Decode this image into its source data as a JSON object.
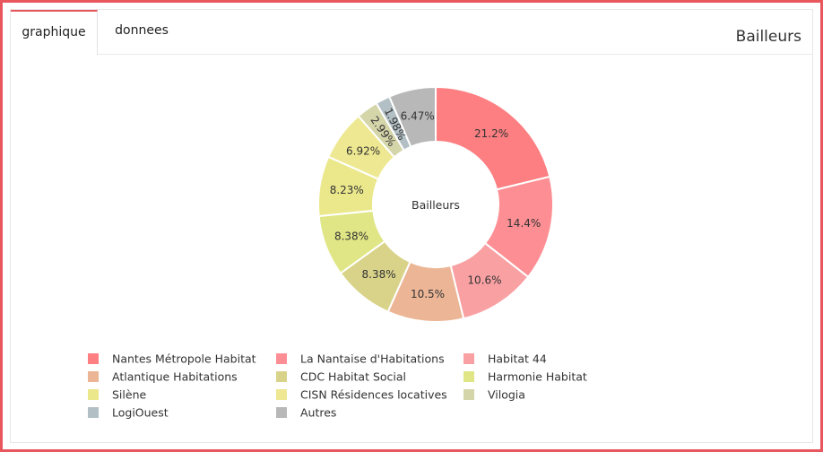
{
  "tabs": [
    {
      "label": "graphique",
      "active": true
    },
    {
      "label": "donnees",
      "active": false
    }
  ],
  "panel_title": "Bailleurs",
  "chart_data": {
    "type": "pie",
    "title": "Bailleurs",
    "hole": true,
    "center_label": "Bailleurs",
    "legend_position": "bottom",
    "slices": [
      {
        "label": "Nantes Métropole Habitat",
        "value": 21.2,
        "text": "21.2%",
        "color": "#fd7f82"
      },
      {
        "label": "La Nantaise d'Habitations",
        "value": 14.4,
        "text": "14.4%",
        "color": "#fd8f94"
      },
      {
        "label": "Habitat 44",
        "value": 10.6,
        "text": "10.6%",
        "color": "#f9a0a3"
      },
      {
        "label": "Atlantique Habitations",
        "value": 10.5,
        "text": "10.5%",
        "color": "#ecb696"
      },
      {
        "label": "CDC Habitat Social",
        "value": 8.38,
        "text": "8.38%",
        "color": "#d9d38a"
      },
      {
        "label": "Harmonie Habitat",
        "value": 8.38,
        "text": "8.38%",
        "color": "#e0e685"
      },
      {
        "label": "Silène",
        "value": 8.23,
        "text": "8.23%",
        "color": "#ebe88c"
      },
      {
        "label": "CISN Résidences locatives",
        "value": 6.92,
        "text": "6.92%",
        "color": "#ede891"
      },
      {
        "label": "Vilogia",
        "value": 2.99,
        "text": "2.99%",
        "color": "#d5d5aa"
      },
      {
        "label": "LogiOuest",
        "value": 1.98,
        "text": "1.98%",
        "color": "#b2bfc4"
      },
      {
        "label": "Autres",
        "value": 6.47,
        "text": "6.47%",
        "color": "#b8b8b8"
      }
    ]
  }
}
